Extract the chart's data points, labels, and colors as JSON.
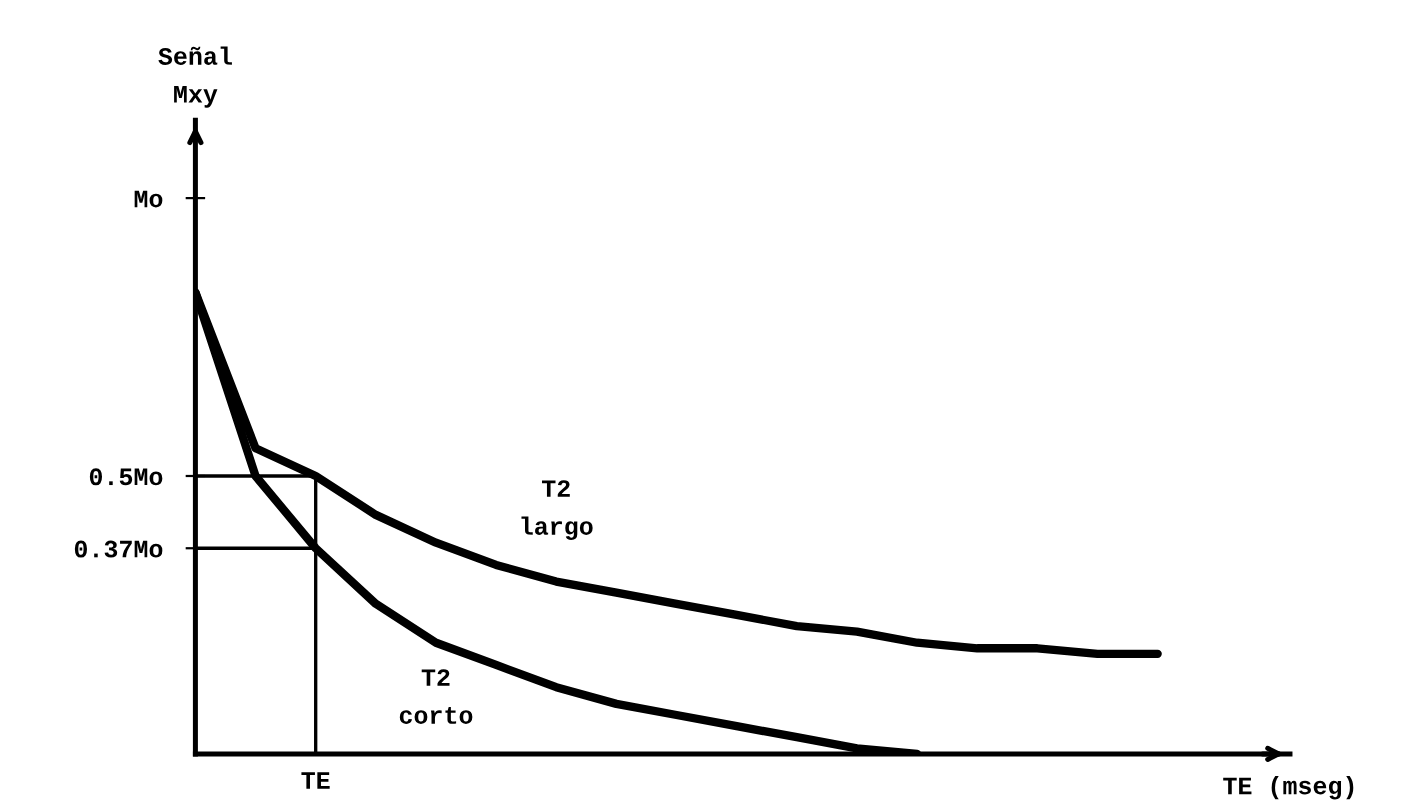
{
  "chart_data": {
    "type": "line",
    "xlabel": "TE (mseg)",
    "ylabel": "Señal\nMxy",
    "categories": [
      null,
      null,
      "TE",
      null,
      null,
      null,
      null,
      null,
      null,
      null,
      null,
      null,
      null,
      null,
      null,
      null,
      null,
      null,
      null
    ],
    "series": [
      {
        "name": "T2\nlargo",
        "color": "#000000",
        "values": [
          0.83,
          0.55,
          0.5,
          0.43,
          0.38,
          0.34,
          0.31,
          0.29,
          0.27,
          0.25,
          0.23,
          0.22,
          0.2,
          0.19,
          0.19,
          0.18,
          0.18,
          null,
          null
        ]
      },
      {
        "name": "T2\ncorto",
        "color": "#000000",
        "values": [
          0.83,
          0.5,
          0.37,
          0.27,
          0.2,
          0.16,
          0.12,
          0.09,
          0.07,
          0.05,
          0.03,
          0.01,
          0.0,
          null,
          null,
          null,
          null,
          null,
          null
        ]
      }
    ],
    "ylim": [
      0,
      1.14
    ],
    "yticks": [
      {
        "value": 1,
        "label": "Mo"
      },
      {
        "value": 0.5,
        "label": "0.5Mo"
      },
      {
        "value": 0.37,
        "label": "0.37Mo"
      }
    ],
    "ref_lines": [
      {
        "axis": "y",
        "value": 0.5,
        "color": "#000000"
      },
      {
        "axis": "y",
        "value": 0.37,
        "color": "#000000"
      },
      {
        "axis": "x",
        "value": "TE",
        "color": "#000000"
      }
    ],
    "grid": false,
    "marker": "none",
    "line_style": "solid"
  }
}
